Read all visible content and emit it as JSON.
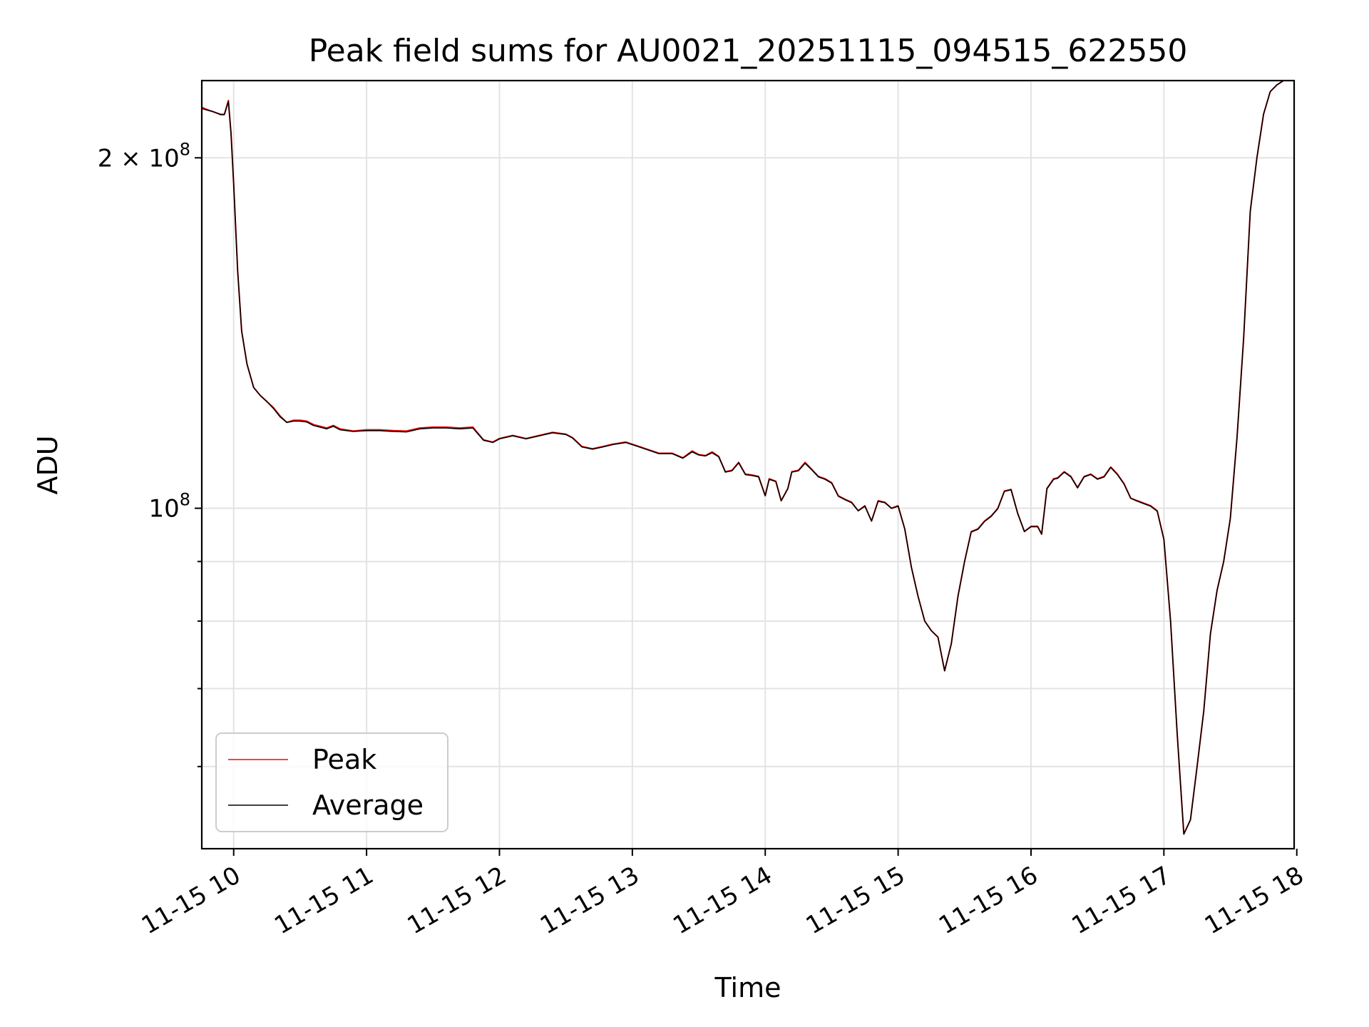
{
  "chart_data": {
    "type": "line",
    "title": "Peak field sums for AU0021_20251115_094515_622550",
    "xlabel": "Time",
    "ylabel": "ADU",
    "yscale": "log",
    "grid": true,
    "legend_position": "lower-left",
    "xlim": [
      9.76,
      17.98
    ],
    "ylim": [
      51000000,
      233000000
    ],
    "x_ticks": [
      {
        "value": 10,
        "label": "11-15 10"
      },
      {
        "value": 11,
        "label": "11-15 11"
      },
      {
        "value": 12,
        "label": "11-15 12"
      },
      {
        "value": 13,
        "label": "11-15 13"
      },
      {
        "value": 14,
        "label": "11-15 14"
      },
      {
        "value": 15,
        "label": "11-15 15"
      },
      {
        "value": 16,
        "label": "11-15 16"
      },
      {
        "value": 17,
        "label": "11-15 17"
      },
      {
        "value": 18,
        "label": "11-15 18"
      }
    ],
    "y_major_ticks": [
      {
        "value": 100000000,
        "mantissa": "",
        "base": "10",
        "exponent": "8"
      },
      {
        "value": 200000000,
        "mantissa": "2 × ",
        "base": "10",
        "exponent": "8"
      }
    ],
    "y_minor_ticks": [
      60000000,
      70000000,
      80000000,
      90000000
    ],
    "series": [
      {
        "name": "Peak",
        "color": "#ff0000",
        "x": [
          9.76,
          9.8,
          9.85,
          9.9,
          9.93,
          9.96,
          9.98,
          10.0,
          10.03,
          10.06,
          10.1,
          10.15,
          10.2,
          10.25,
          10.3,
          10.35,
          10.4,
          10.45,
          10.5,
          10.55,
          10.6,
          10.7,
          10.75,
          10.8,
          10.9,
          11.0,
          11.1,
          11.2,
          11.3,
          11.4,
          11.5,
          11.6,
          11.7,
          11.8,
          11.88,
          11.95,
          12.0,
          12.1,
          12.2,
          12.3,
          12.4,
          12.5,
          12.55,
          12.62,
          12.7,
          12.78,
          12.85,
          12.95,
          13.0,
          13.1,
          13.2,
          13.3,
          13.38,
          13.45,
          13.5,
          13.55,
          13.6,
          13.65,
          13.7,
          13.75,
          13.8,
          13.85,
          13.9,
          13.95,
          14.0,
          14.03,
          14.08,
          14.12,
          14.17,
          14.2,
          14.25,
          14.3,
          14.35,
          14.4,
          14.45,
          14.5,
          14.55,
          14.6,
          14.65,
          14.7,
          14.75,
          14.8,
          14.85,
          14.9,
          14.95,
          15.0,
          15.05,
          15.1,
          15.15,
          15.2,
          15.25,
          15.3,
          15.35,
          15.4,
          15.45,
          15.5,
          15.55,
          15.6,
          15.65,
          15.7,
          15.75,
          15.8,
          15.85,
          15.9,
          15.95,
          16.0,
          16.05,
          16.08,
          16.12,
          16.17,
          16.2,
          16.25,
          16.3,
          16.35,
          16.4,
          16.45,
          16.5,
          16.55,
          16.6,
          16.65,
          16.7,
          16.75,
          16.8,
          16.85,
          16.9,
          16.95,
          17.0,
          17.05,
          17.1,
          17.15,
          17.2,
          17.25,
          17.3,
          17.35,
          17.4,
          17.45,
          17.5,
          17.55,
          17.6,
          17.65,
          17.7,
          17.75,
          17.8,
          17.85,
          17.9,
          17.95
        ],
        "y": [
          221000000,
          220000000,
          219000000,
          218000000,
          218000000,
          224000000,
          210000000,
          190000000,
          160000000,
          142000000,
          133000000,
          127000000,
          125000000,
          123500000,
          122000000,
          120000000,
          118500000,
          119000000,
          119000000,
          118800000,
          118000000,
          117200000,
          117800000,
          117000000,
          116500000,
          116800000,
          116800000,
          116600000,
          116500000,
          117200000,
          117400000,
          117400000,
          117200000,
          117400000,
          114500000,
          114000000,
          114800000,
          115500000,
          114800000,
          115500000,
          116200000,
          115800000,
          115000000,
          113000000,
          112500000,
          113000000,
          113500000,
          114000000,
          113500000,
          112500000,
          111500000,
          111500000,
          110500000,
          112000000,
          111200000,
          111000000,
          111800000,
          110800000,
          107500000,
          107800000,
          109500000,
          107000000,
          106800000,
          106500000,
          102500000,
          106000000,
          105500000,
          101500000,
          104000000,
          107500000,
          107800000,
          109500000,
          108000000,
          106500000,
          106000000,
          105200000,
          102500000,
          101800000,
          101200000,
          99500000,
          100500000,
          97500000,
          101500000,
          101200000,
          100000000,
          100500000,
          96000000,
          89000000,
          84000000,
          80000000,
          78500000,
          77500000,
          72500000,
          76500000,
          84000000,
          90000000,
          95500000,
          96000000,
          97500000,
          98500000,
          100000000,
          103500000,
          103800000,
          99000000,
          95500000,
          96500000,
          96500000,
          95000000,
          104000000,
          106000000,
          106200000,
          107500000,
          106500000,
          104200000,
          106500000,
          107000000,
          106000000,
          106500000,
          108500000,
          107000000,
          105000000,
          102000000,
          101500000,
          101000000,
          100500000,
          99500000,
          94000000,
          80000000,
          64000000,
          52500000,
          54000000,
          60000000,
          67000000,
          78000000,
          85000000,
          90000000,
          98000000,
          115000000,
          140000000,
          180000000,
          200000000,
          218000000,
          228000000,
          231000000,
          233000000,
          233000000
        ]
      },
      {
        "name": "Average",
        "color": "#000000",
        "x": [
          9.76,
          9.8,
          9.85,
          9.9,
          9.93,
          9.96,
          9.98,
          10.0,
          10.03,
          10.06,
          10.1,
          10.15,
          10.2,
          10.25,
          10.3,
          10.35,
          10.4,
          10.45,
          10.5,
          10.55,
          10.6,
          10.7,
          10.75,
          10.8,
          10.9,
          11.0,
          11.1,
          11.2,
          11.3,
          11.4,
          11.5,
          11.6,
          11.7,
          11.8,
          11.88,
          11.95,
          12.0,
          12.1,
          12.2,
          12.3,
          12.4,
          12.5,
          12.55,
          12.62,
          12.7,
          12.78,
          12.85,
          12.95,
          13.0,
          13.1,
          13.2,
          13.3,
          13.38,
          13.45,
          13.5,
          13.55,
          13.6,
          13.65,
          13.7,
          13.75,
          13.8,
          13.85,
          13.9,
          13.95,
          14.0,
          14.03,
          14.08,
          14.12,
          14.17,
          14.2,
          14.25,
          14.3,
          14.35,
          14.4,
          14.45,
          14.5,
          14.55,
          14.6,
          14.65,
          14.7,
          14.75,
          14.8,
          14.85,
          14.9,
          14.95,
          15.0,
          15.05,
          15.1,
          15.15,
          15.2,
          15.25,
          15.3,
          15.35,
          15.4,
          15.45,
          15.5,
          15.55,
          15.6,
          15.65,
          15.7,
          15.75,
          15.8,
          15.85,
          15.9,
          15.95,
          16.0,
          16.05,
          16.08,
          16.12,
          16.17,
          16.2,
          16.25,
          16.3,
          16.35,
          16.4,
          16.45,
          16.5,
          16.55,
          16.6,
          16.65,
          16.7,
          16.75,
          16.8,
          16.85,
          16.9,
          16.95,
          17.0,
          17.05,
          17.1,
          17.15,
          17.2,
          17.25,
          17.3,
          17.35,
          17.4,
          17.45,
          17.5,
          17.55,
          17.6,
          17.65,
          17.7,
          17.75,
          17.8,
          17.85,
          17.9,
          17.95
        ],
        "y": [
          220500000,
          219800000,
          219000000,
          217800000,
          217800000,
          223500000,
          210000000,
          190000000,
          160000000,
          142000000,
          133000000,
          127000000,
          125000000,
          123500000,
          121800000,
          119800000,
          118500000,
          118800000,
          118800000,
          118600000,
          117800000,
          117000000,
          117600000,
          116800000,
          116400000,
          116600000,
          116600000,
          116400000,
          116300000,
          117000000,
          117200000,
          117200000,
          117000000,
          117200000,
          114400000,
          113900000,
          114700000,
          115400000,
          114700000,
          115400000,
          116100000,
          115700000,
          114900000,
          112900000,
          112400000,
          112900000,
          113400000,
          113900000,
          113400000,
          112400000,
          111400000,
          111400000,
          110400000,
          111800000,
          111100000,
          110900000,
          111600000,
          110700000,
          107400000,
          107700000,
          109400000,
          106900000,
          106700000,
          106400000,
          102500000,
          105900000,
          105400000,
          101500000,
          103900000,
          107400000,
          107700000,
          109300000,
          107900000,
          106400000,
          105900000,
          105100000,
          102400000,
          101700000,
          101100000,
          99500000,
          100400000,
          97500000,
          101400000,
          101100000,
          100000000,
          100400000,
          96000000,
          89000000,
          84000000,
          80000000,
          78500000,
          77500000,
          72500000,
          76500000,
          84000000,
          90000000,
          95400000,
          95900000,
          97400000,
          98400000,
          99900000,
          103400000,
          103700000,
          99000000,
          95500000,
          96400000,
          96400000,
          95000000,
          103900000,
          105900000,
          106100000,
          107400000,
          106400000,
          104100000,
          106400000,
          106900000,
          105900000,
          106400000,
          108400000,
          106900000,
          104900000,
          102000000,
          101400000,
          100900000,
          100400000,
          99400000,
          94000000,
          80000000,
          64000000,
          52500000,
          54000000,
          60000000,
          67000000,
          78000000,
          85000000,
          90000000,
          98000000,
          115000000,
          140000000,
          180000000,
          200000000,
          218000000,
          228000000,
          231000000,
          233000000,
          233000000
        ]
      }
    ]
  }
}
